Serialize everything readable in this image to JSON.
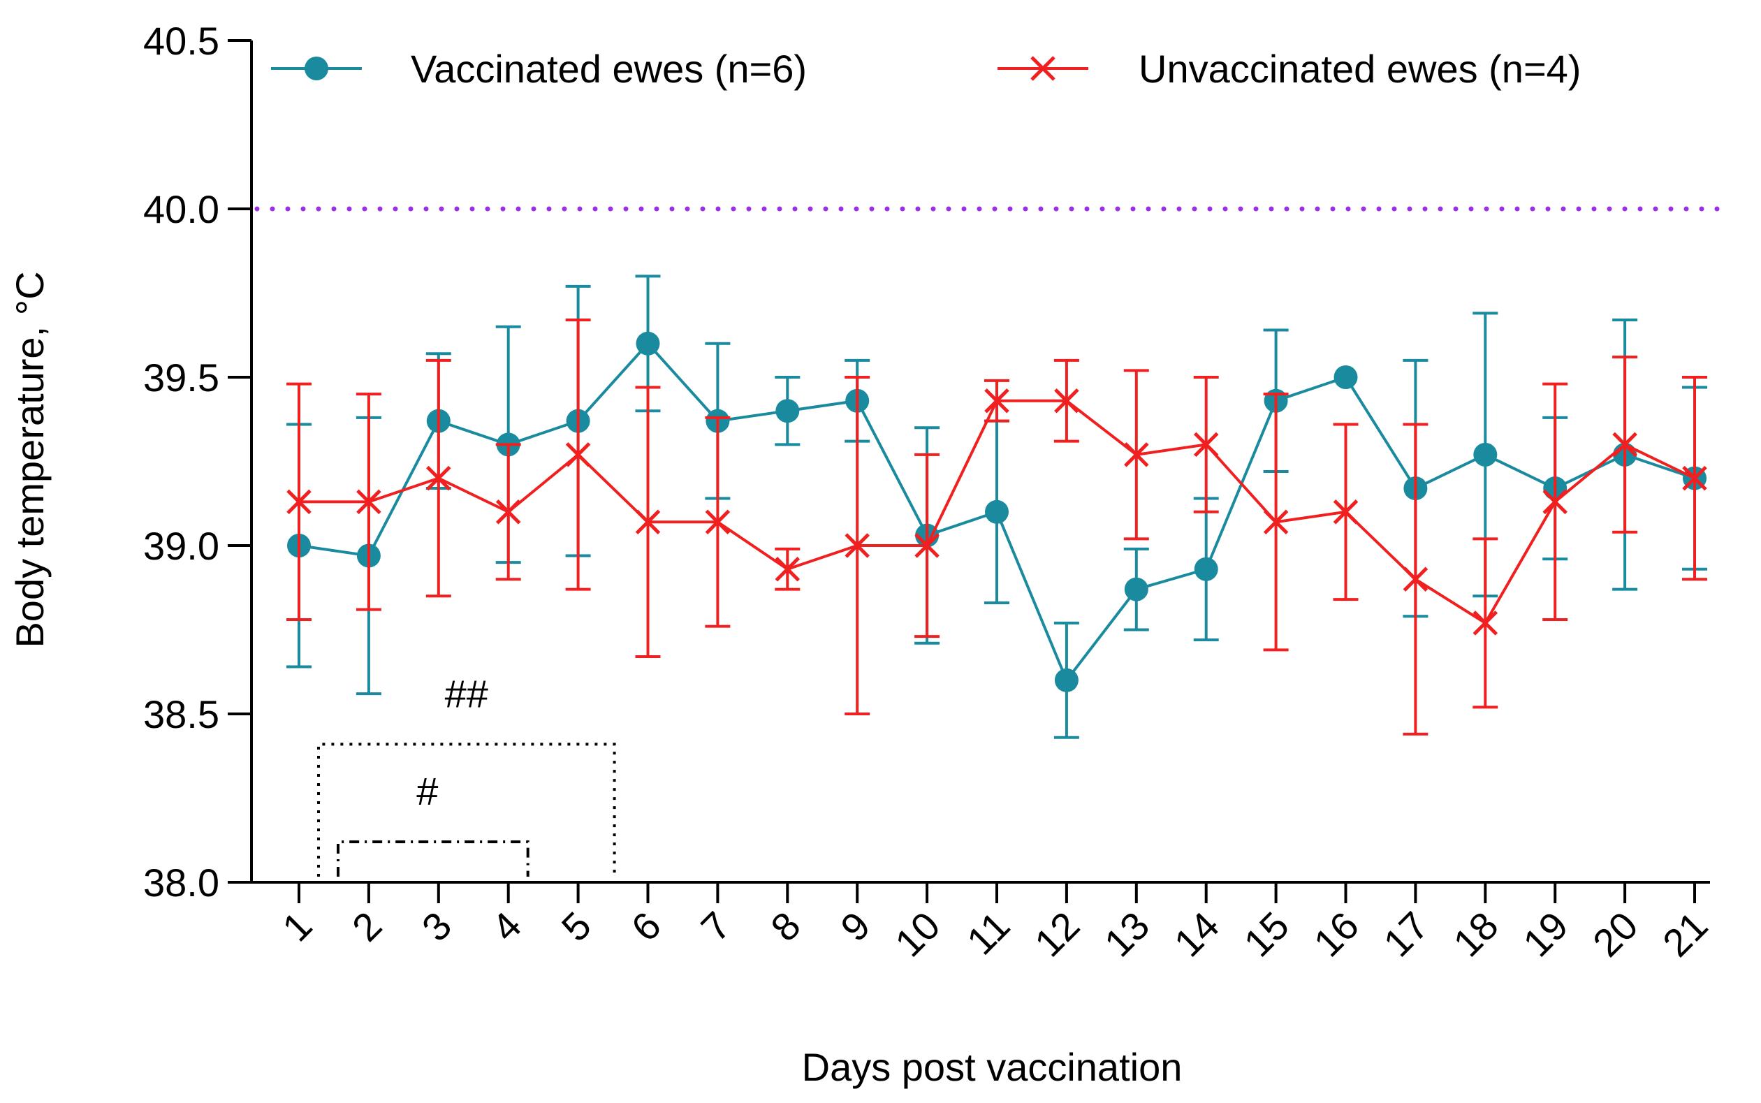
{
  "chart_data": {
    "type": "line",
    "title": "",
    "xlabel": "Days post vaccination",
    "ylabel": "Body temperature, °C",
    "ylim": [
      38.0,
      40.5
    ],
    "yticks": [
      "38.0",
      "38.5",
      "39.0",
      "39.5",
      "40.0",
      "40.5"
    ],
    "categories": [
      "1",
      "2",
      "3",
      "4",
      "5",
      "6",
      "7",
      "8",
      "9",
      "10",
      "11",
      "12",
      "13",
      "14",
      "15",
      "16",
      "17",
      "18",
      "19",
      "20",
      "21"
    ],
    "threshold": {
      "value": 40.0,
      "color": "#9b30e0",
      "style": "dotted"
    },
    "legend_position": "top",
    "series": [
      {
        "name": "Vaccinated ewes (n=6)",
        "color": "#1a8a9e",
        "marker": "circle",
        "values": [
          39.0,
          38.97,
          39.37,
          39.3,
          39.37,
          39.6,
          39.37,
          39.4,
          39.43,
          39.03,
          39.1,
          38.6,
          38.87,
          38.93,
          39.43,
          39.5,
          39.17,
          39.27,
          39.17,
          39.27,
          39.2
        ],
        "errors": [
          0.36,
          0.41,
          0.2,
          0.35,
          0.4,
          0.2,
          0.23,
          0.1,
          0.12,
          0.32,
          0.27,
          0.17,
          0.12,
          0.21,
          0.21,
          0.0,
          0.38,
          0.42,
          0.21,
          0.4,
          0.27
        ]
      },
      {
        "name": "Unvaccinated ewes (n=4)",
        "color": "#f02020",
        "marker": "x",
        "values": [
          39.13,
          39.13,
          39.2,
          39.1,
          39.27,
          39.07,
          39.07,
          38.93,
          39.0,
          39.0,
          39.43,
          39.43,
          39.27,
          39.3,
          39.07,
          39.1,
          38.9,
          38.77,
          39.13,
          39.3,
          39.2
        ],
        "errors": [
          0.35,
          0.32,
          0.35,
          0.2,
          0.4,
          0.4,
          0.31,
          0.06,
          0.5,
          0.27,
          0.06,
          0.12,
          0.25,
          0.2,
          0.38,
          0.26,
          0.46,
          0.25,
          0.35,
          0.26,
          0.3
        ]
      }
    ],
    "annotations": [
      {
        "text": "##",
        "from_day": 1,
        "to_day": 5,
        "style": "dotted"
      },
      {
        "text": "#",
        "from_day": 1,
        "to_day": 4,
        "style": "dash-dot"
      }
    ]
  }
}
